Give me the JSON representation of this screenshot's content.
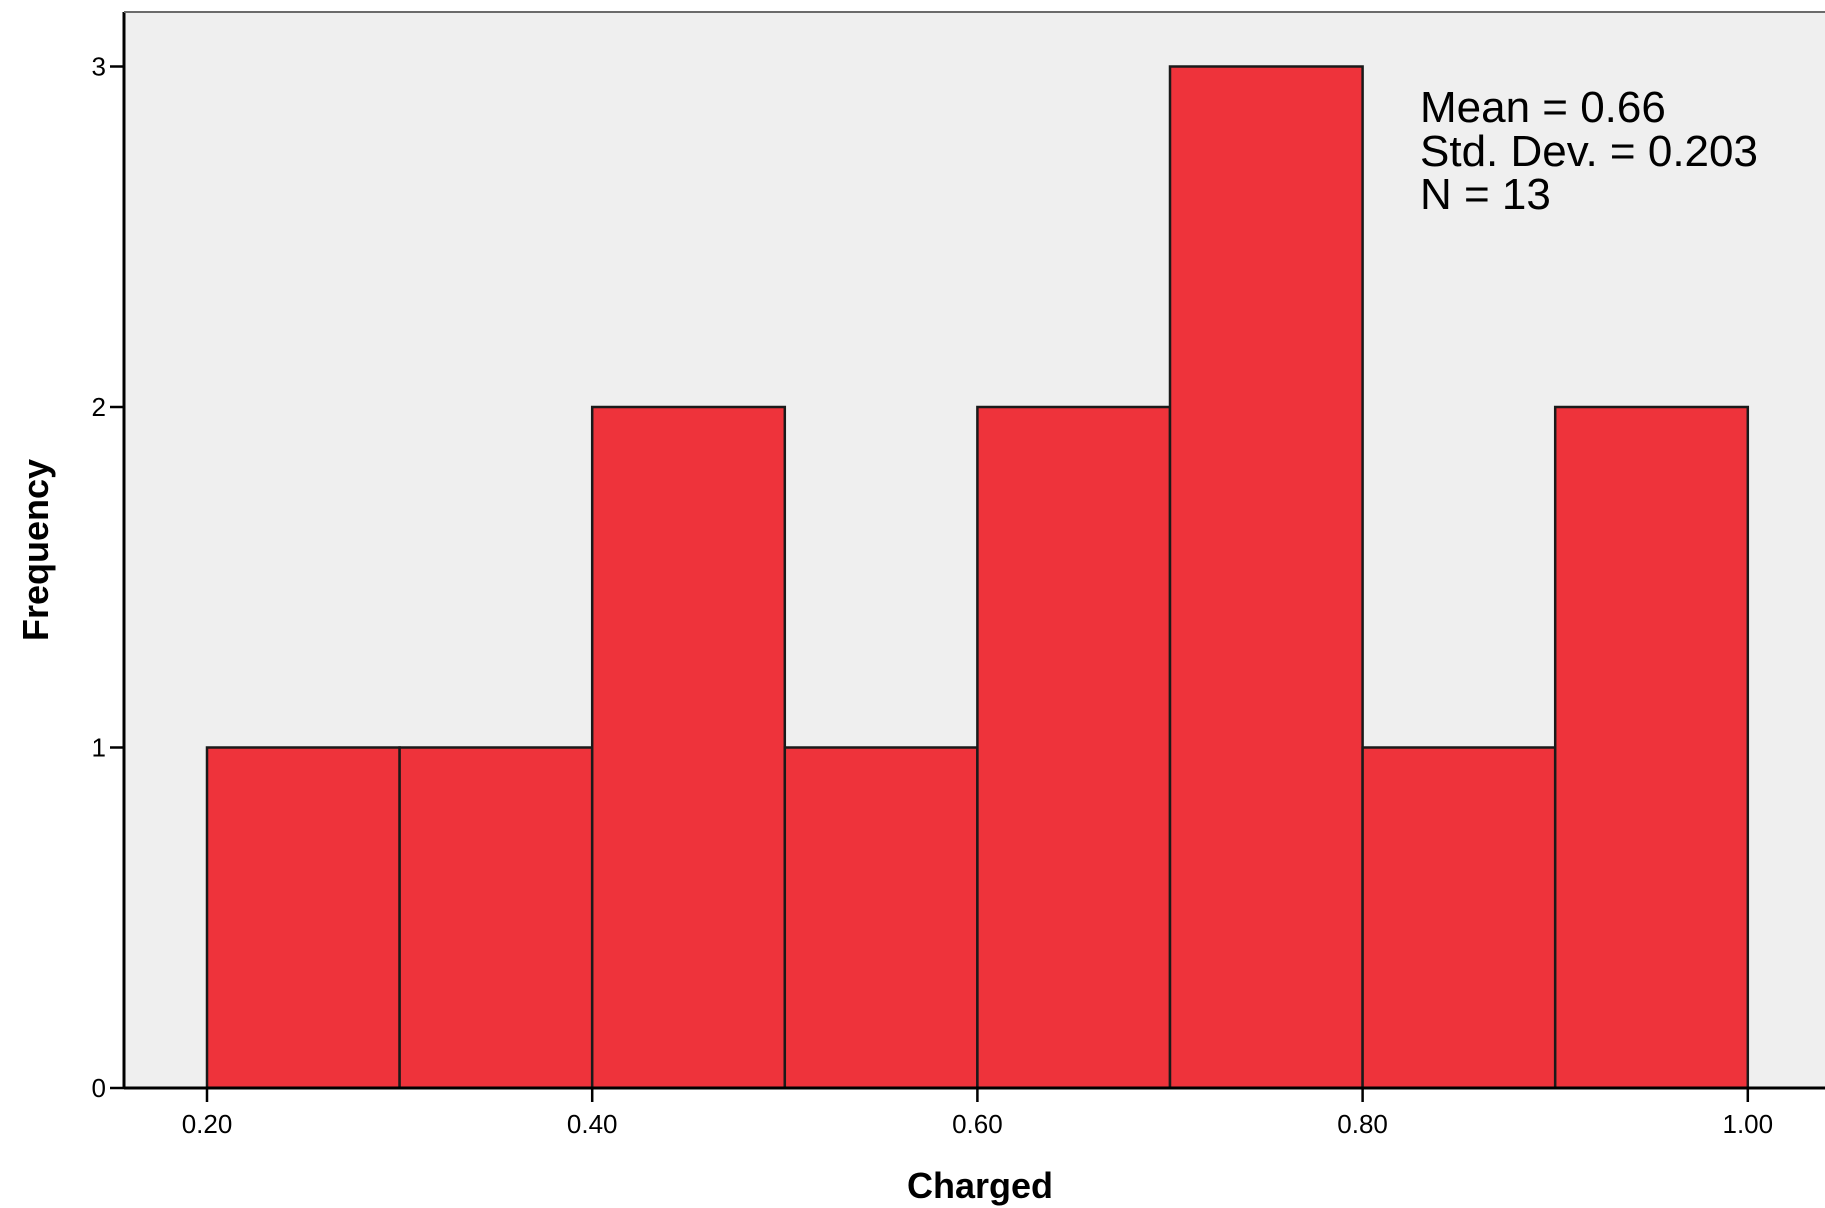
{
  "chart_data": {
    "type": "bar",
    "subtype": "histogram",
    "xlabel": "Charged",
    "ylabel": "Frequency",
    "bins": [
      {
        "start": 0.2,
        "end": 0.3,
        "count": 1
      },
      {
        "start": 0.3,
        "end": 0.4,
        "count": 1
      },
      {
        "start": 0.4,
        "end": 0.5,
        "count": 2
      },
      {
        "start": 0.5,
        "end": 0.6,
        "count": 1
      },
      {
        "start": 0.6,
        "end": 0.7,
        "count": 2
      },
      {
        "start": 0.7,
        "end": 0.8,
        "count": 3
      },
      {
        "start": 0.8,
        "end": 0.9,
        "count": 1
      },
      {
        "start": 0.9,
        "end": 1.0,
        "count": 2
      }
    ],
    "xlim": [
      0.156,
      1.236
    ],
    "ylim": [
      0,
      3.16
    ],
    "x_ticks": [
      0.2,
      0.4,
      0.6,
      0.8,
      1.0
    ],
    "x_tick_labels": [
      "0.20",
      "0.40",
      "0.60",
      "0.80",
      "1.00"
    ],
    "y_ticks": [
      0,
      1,
      2,
      3
    ],
    "y_tick_labels": [
      "0",
      "1",
      "2",
      "3"
    ],
    "stats": {
      "mean_text": "Mean = 0.66",
      "std_text": "Std. Dev. = 0.203",
      "n_text": "N = 13"
    },
    "grid": false,
    "colors": {
      "bar_fill": "#ee333b",
      "bar_stroke": "#1a1a1a",
      "plot_background": "#efefef",
      "axis": "#000000"
    }
  }
}
